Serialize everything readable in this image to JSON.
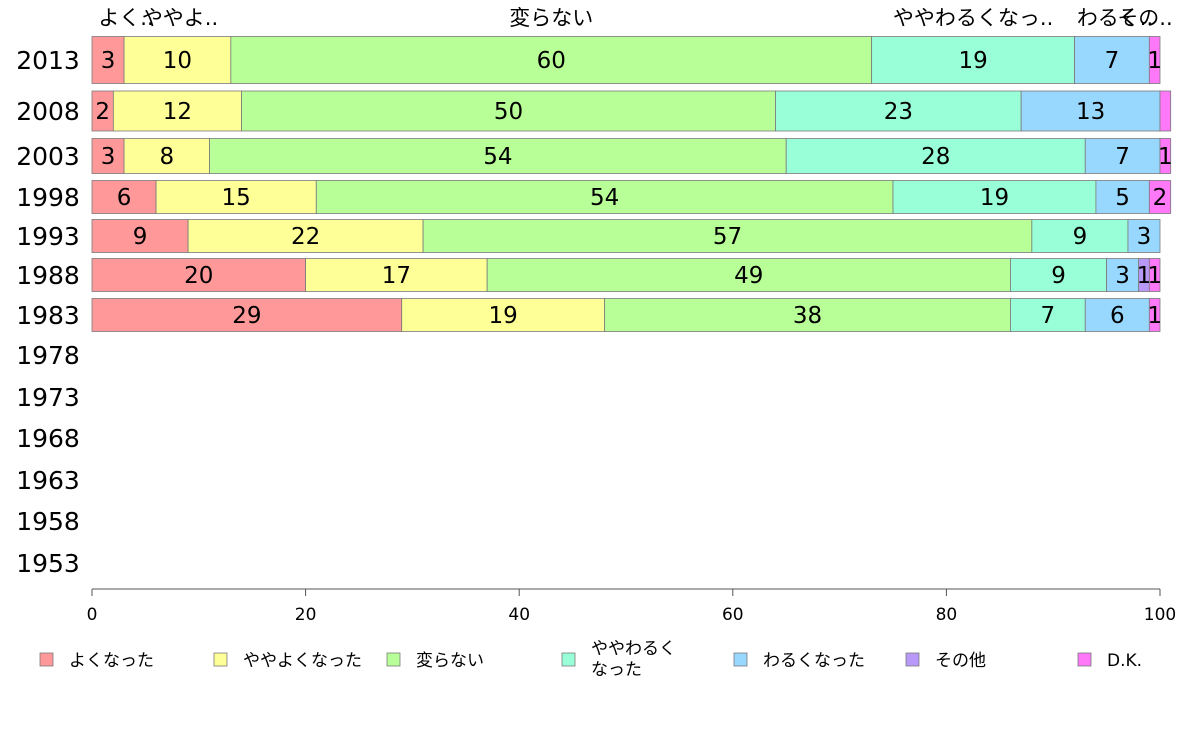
{
  "chart_data": {
    "type": "bar",
    "orientation": "horizontal-stacked-100",
    "categories": [
      "2013",
      "2008",
      "2003",
      "1998",
      "1993",
      "1988",
      "1983",
      "1978",
      "1973",
      "1968",
      "1963",
      "1958",
      "1953"
    ],
    "series": [
      {
        "name": "よくなった",
        "color": "#ff9898",
        "values": [
          3,
          2,
          3,
          6,
          9,
          20,
          29,
          null,
          null,
          null,
          null,
          null,
          null
        ],
        "top_label": "よく.."
      },
      {
        "name": "ややよくなった",
        "color": "#ffff98",
        "values": [
          10,
          12,
          8,
          15,
          22,
          17,
          19,
          null,
          null,
          null,
          null,
          null,
          null
        ],
        "top_label": "ややよ.."
      },
      {
        "name": "変らない",
        "color": "#b8ff98",
        "values": [
          60,
          50,
          54,
          54,
          57,
          49,
          38,
          null,
          null,
          null,
          null,
          null,
          null
        ],
        "top_label": "変らない"
      },
      {
        "name": "ややわるくなった",
        "legend_lines": [
          "ややわるく",
          "なった"
        ],
        "color": "#98ffd8",
        "values": [
          19,
          23,
          28,
          19,
          9,
          9,
          7,
          null,
          null,
          null,
          null,
          null,
          null
        ],
        "top_label": "ややわるくなっ.."
      },
      {
        "name": "わるくなった",
        "color": "#98d8ff",
        "values": [
          7,
          13,
          7,
          5,
          3,
          3,
          6,
          null,
          null,
          null,
          null,
          null,
          null
        ],
        "top_label": "わるく.."
      },
      {
        "name": "その他",
        "color": "#b898f8",
        "values": [
          0,
          0,
          0,
          0,
          0,
          1,
          0,
          null,
          null,
          null,
          null,
          null,
          null
        ],
        "top_label": "その.."
      },
      {
        "name": "D.K.",
        "color": "#ff78f8",
        "values": [
          1,
          1,
          1,
          2,
          0,
          1,
          1,
          null,
          null,
          null,
          null,
          null,
          null
        ],
        "top_label": ""
      }
    ],
    "segment_labels": [
      [
        "3",
        "10",
        "60",
        "19",
        "7",
        "",
        "1"
      ],
      [
        "2",
        "12",
        "50",
        "23",
        "13",
        "",
        ""
      ],
      [
        "3",
        "8",
        "54",
        "28",
        "7",
        "",
        "1"
      ],
      [
        "6",
        "15",
        "54",
        "19",
        "5",
        "",
        "2"
      ],
      [
        "9",
        "22",
        "57",
        "9",
        "3",
        "",
        ""
      ],
      [
        "20",
        "17",
        "49",
        "9",
        "3",
        "1",
        "1"
      ],
      [
        "29",
        "19",
        "38",
        "7",
        "6",
        "",
        "1"
      ]
    ],
    "xlim": [
      0,
      100
    ],
    "xticks": [
      "0",
      "20",
      "40",
      "60",
      "80",
      "100"
    ],
    "grid": false,
    "legend_position": "bottom"
  }
}
